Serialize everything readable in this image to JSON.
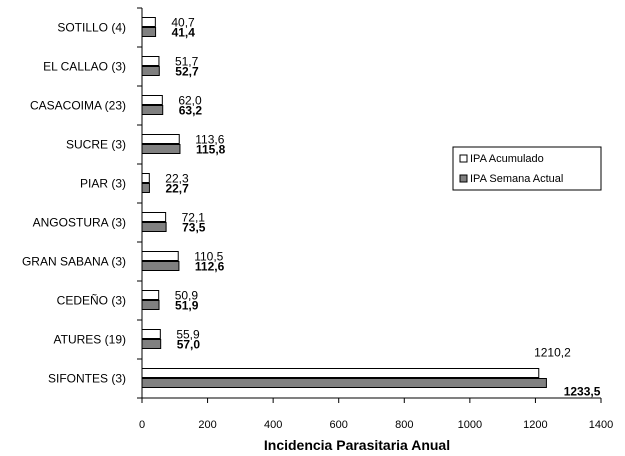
{
  "chart_data": {
    "type": "bar",
    "orientation": "horizontal",
    "categories": [
      "SOTILLO (4)",
      "EL CALLAO (3)",
      "CASACOIMA (23)",
      "SUCRE (3)",
      "PIAR (3)",
      "ANGOSTURA (3)",
      "GRAN SABANA (3)",
      "CEDEÑO (3)",
      "ATURES (19)",
      "SIFONTES (3)"
    ],
    "series": [
      {
        "name": "IPA Acumulado",
        "values": [
          40.7,
          51.7,
          62.0,
          113.6,
          22.3,
          72.1,
          110.5,
          50.9,
          55.9,
          1210.2
        ],
        "labels": [
          "40,7",
          "51,7",
          "62,0",
          "113,6",
          "22,3",
          "72,1",
          "110,5",
          "50,9",
          "55,9",
          "1210,2"
        ],
        "color": "#ffffff"
      },
      {
        "name": "IPA Semana Actual",
        "values": [
          41.4,
          52.7,
          63.2,
          115.8,
          22.7,
          73.5,
          112.6,
          51.9,
          57.0,
          1233.5
        ],
        "labels": [
          "41,4",
          "52,7",
          "63,2",
          "115,8",
          "22,7",
          "73,5",
          "112,6",
          "51,9",
          "57,0",
          "1233,5"
        ],
        "color": "#808080"
      }
    ],
    "xlabel": "Incidencia Parasitaria Anual",
    "xlim": [
      0,
      1400
    ],
    "xticks": [
      0,
      200,
      400,
      600,
      800,
      1000,
      1200,
      1400
    ],
    "grid": false,
    "legend_position": "right"
  }
}
